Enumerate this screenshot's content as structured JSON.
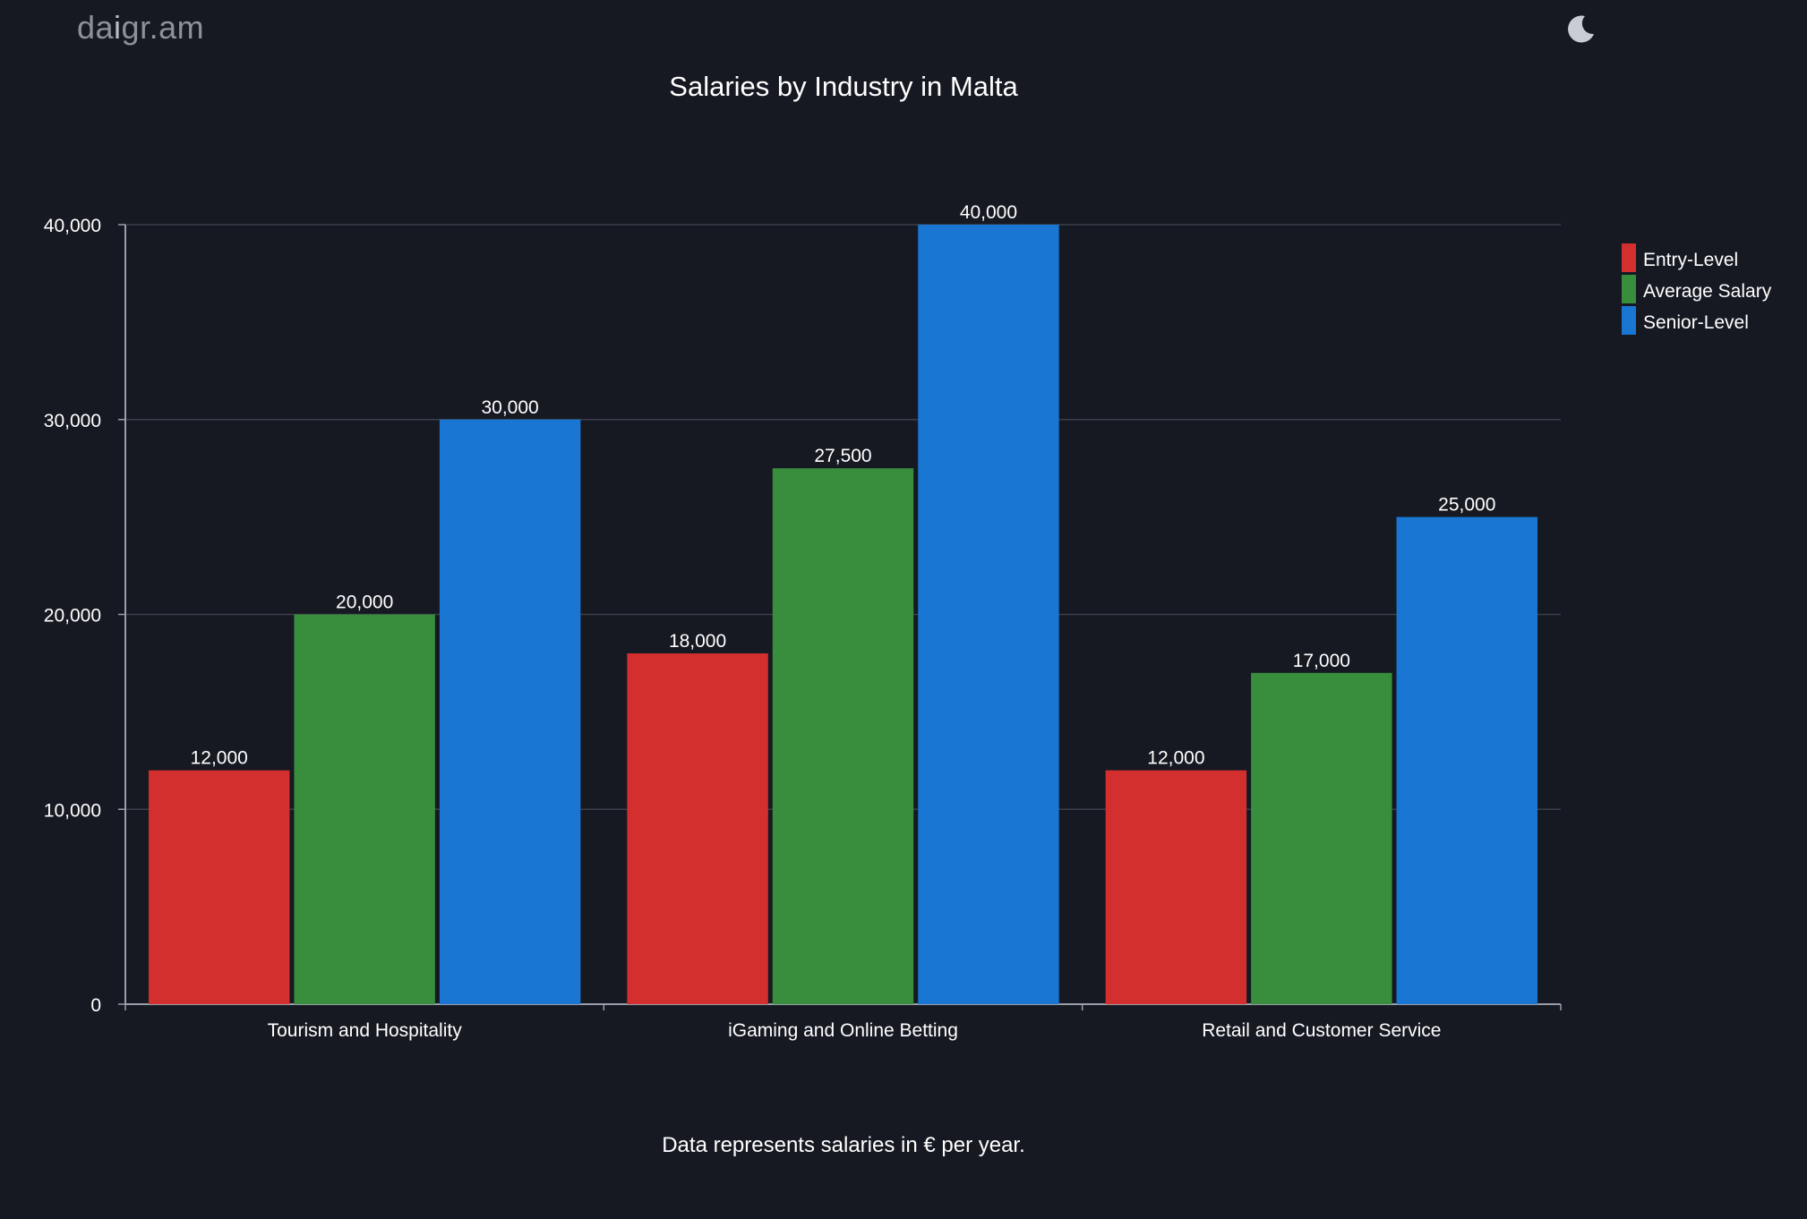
{
  "header": {
    "logo_prefix": "da",
    "logo_accent": "i",
    "logo_suffix": "gr.am",
    "theme_toggle_icon": "moon-icon"
  },
  "colors": {
    "background": "#161922",
    "grid": "#3a3f4b",
    "axis": "#9a9ea8",
    "text": "#ffffff",
    "entry_level": "#d32f2f",
    "average_salary": "#388e3c",
    "senior_level": "#1976d2"
  },
  "chart_data": {
    "type": "bar",
    "title": "Salaries by Industry in Malta",
    "caption": "Data represents salaries in € per year.",
    "categories": [
      "Tourism and Hospitality",
      "iGaming and Online Betting",
      "Retail and Customer Service"
    ],
    "series": [
      {
        "name": "Entry-Level",
        "color": "#d32f2f",
        "values": [
          12000,
          18000,
          12000
        ],
        "labels": [
          "12,000",
          "18,000",
          "12,000"
        ]
      },
      {
        "name": "Average Salary",
        "color": "#388e3c",
        "values": [
          20000,
          27500,
          17000
        ],
        "labels": [
          "20,000",
          "27,500",
          "17,000"
        ]
      },
      {
        "name": "Senior-Level",
        "color": "#1976d2",
        "values": [
          30000,
          40000,
          25000
        ],
        "labels": [
          "30,000",
          "40,000",
          "25,000"
        ]
      }
    ],
    "ylim": [
      0,
      40000
    ],
    "yticks": [
      {
        "value": 0,
        "label": "0"
      },
      {
        "value": 10000,
        "label": "10,000"
      },
      {
        "value": 20000,
        "label": "20,000"
      },
      {
        "value": 30000,
        "label": "30,000"
      },
      {
        "value": 40000,
        "label": "40,000"
      }
    ],
    "xlabel": "",
    "ylabel": "",
    "grid": true,
    "legend_position": "right"
  }
}
